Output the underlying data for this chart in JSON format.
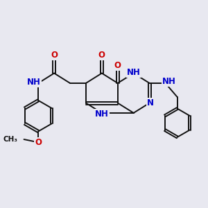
{
  "bg_color": "#e8e8f0",
  "bond_color": "#111111",
  "N_color": "#0000cc",
  "O_color": "#cc0000",
  "H_color": "#2a8a7a",
  "bond_width": 1.4,
  "font_size": 8.5,
  "xlim": [
    0,
    10
  ],
  "ylim": [
    0,
    10
  ]
}
